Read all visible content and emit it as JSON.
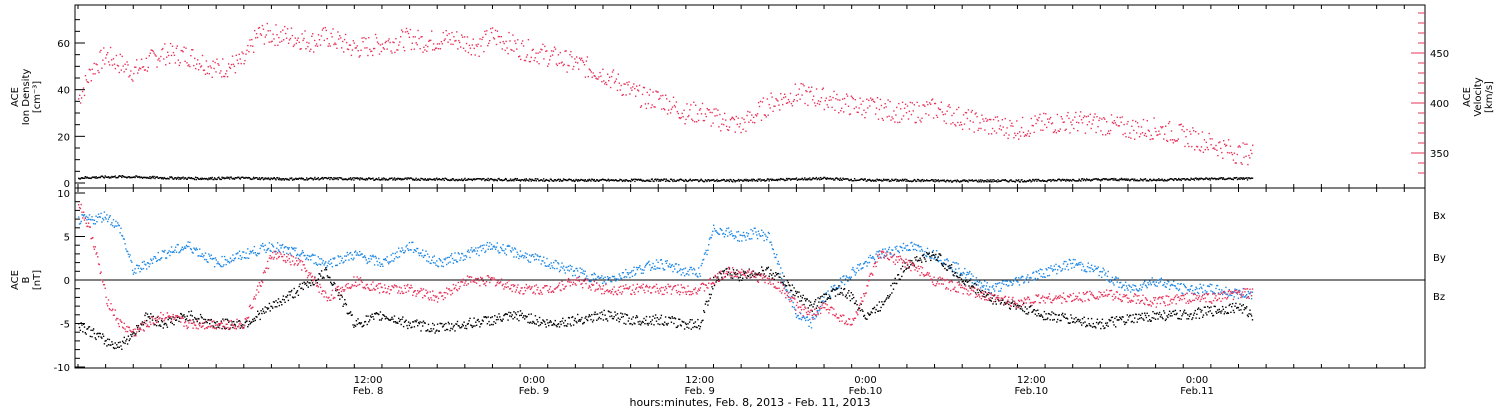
{
  "colors": {
    "density": "#000000",
    "velocity": "#e8325a",
    "bx": "#000000",
    "by": "#1e88e5",
    "bz": "#e8325a",
    "axis": "#000000"
  },
  "chart_data": [
    {
      "type": "scatter",
      "panel": "top",
      "ylabel_left": [
        "ACE",
        "Ion Density",
        "[cm⁻³]"
      ],
      "ylabel_right": [
        "ACE",
        "Velocity",
        "[km/s]"
      ],
      "ylim_left": [
        0,
        75
      ],
      "yticks_left": [
        "0",
        "20",
        "40",
        "60"
      ],
      "ylim_right": [
        320,
        495
      ],
      "yticks_right": [
        "350",
        "400",
        "450"
      ],
      "x_unit": "hours since 2013-02-07 15:00",
      "series": [
        {
          "name": "density",
          "x": [
            0,
            3,
            6,
            9,
            12,
            15,
            18,
            21,
            24,
            27,
            30,
            33,
            36,
            39,
            42,
            45,
            48,
            51,
            54,
            57,
            60,
            63,
            66,
            69,
            72,
            75,
            78,
            81,
            84,
            85
          ],
          "y": [
            2.5,
            3.0,
            2.5,
            2.2,
            2.4,
            2.0,
            2.2,
            2.0,
            2.0,
            1.8,
            1.8,
            1.6,
            1.5,
            1.4,
            1.5,
            1.4,
            1.3,
            1.8,
            2.2,
            1.5,
            1.4,
            1.2,
            1.2,
            1.3,
            1.6,
            1.8,
            1.6,
            2.0,
            2.2,
            2.0
          ]
        },
        {
          "name": "velocity",
          "x": [
            0,
            1,
            2,
            3,
            4,
            6,
            8,
            10,
            11,
            12,
            13,
            15,
            17,
            18,
            20,
            22,
            24,
            25,
            27,
            29,
            30,
            32,
            34,
            36,
            38,
            40,
            41,
            42,
            43,
            44,
            45,
            46,
            48,
            50,
            52,
            54,
            56,
            58,
            60,
            62,
            64,
            66,
            68,
            70,
            72,
            74,
            76,
            78,
            80,
            82,
            83,
            84,
            85
          ],
          "y": [
            405,
            435,
            448,
            440,
            432,
            450,
            448,
            435,
            438,
            442,
            470,
            468,
            462,
            467,
            455,
            460,
            465,
            462,
            465,
            458,
            468,
            455,
            448,
            440,
            430,
            412,
            405,
            405,
            398,
            390,
            392,
            385,
            378,
            400,
            410,
            405,
            398,
            395,
            390,
            395,
            385,
            378,
            375,
            380,
            382,
            380,
            375,
            375,
            368,
            360,
            355,
            350,
            350
          ]
        }
      ]
    },
    {
      "type": "scatter",
      "panel": "bottom",
      "ylabel": [
        "ACE",
        "B",
        "[nT]"
      ],
      "ylim": [
        -10.5,
        10.5
      ],
      "yticks": [
        "-10",
        "-5",
        "0",
        "5",
        "10"
      ],
      "legend": [
        "Bx",
        "By",
        "Bz"
      ],
      "x_unit": "hours since 2013-02-07 15:00",
      "series": [
        {
          "name": "Bx",
          "x": [
            0,
            1,
            2,
            3,
            4,
            5,
            6,
            8,
            10,
            12,
            14,
            16,
            18,
            20,
            22,
            24,
            26,
            28,
            30,
            32,
            34,
            36,
            38,
            40,
            42,
            44,
            45,
            46,
            47,
            48,
            49,
            50,
            51,
            52,
            53,
            54,
            55,
            56,
            57,
            58,
            60,
            62,
            64,
            66,
            68,
            70,
            72,
            74,
            76,
            78,
            80,
            82,
            84,
            85
          ],
          "y": [
            -5,
            -6,
            -7,
            -7.5,
            -6,
            -4,
            -5,
            -4,
            -5,
            -5,
            -3,
            -1,
            1,
            -5,
            -4,
            -5,
            -5.5,
            -5,
            -4.5,
            -4,
            -5,
            -4.5,
            -4,
            -4.5,
            -4.5,
            -5,
            -5,
            0,
            1,
            0.5,
            1,
            1,
            0,
            -1.5,
            -3,
            -2,
            -1,
            -2,
            -4,
            -3,
            2,
            3,
            0,
            -2,
            -3,
            -4,
            -4.5,
            -5,
            -4.5,
            -4,
            -4,
            -3.5,
            -3,
            -4
          ]
        },
        {
          "name": "By",
          "x": [
            0,
            1,
            2,
            3,
            4,
            6,
            8,
            10,
            12,
            14,
            16,
            18,
            20,
            22,
            24,
            26,
            28,
            30,
            32,
            34,
            36,
            38,
            40,
            42,
            44,
            45,
            46,
            47,
            48,
            49,
            50,
            51,
            52,
            53,
            54,
            56,
            58,
            60,
            62,
            64,
            66,
            68,
            70,
            72,
            74,
            76,
            78,
            80,
            82,
            84,
            85
          ],
          "y": [
            7,
            7,
            7.5,
            6,
            1,
            3,
            4,
            2,
            3,
            4,
            3,
            2,
            3,
            2,
            4,
            2,
            3,
            4,
            3,
            2,
            1,
            0,
            1,
            2,
            1,
            1,
            6,
            5.5,
            5,
            5.5,
            5,
            0,
            -4,
            -5,
            -2,
            1,
            3,
            4,
            3,
            1,
            -1,
            0,
            1,
            2,
            1,
            -1,
            0,
            -1,
            -1,
            -1.5,
            -1.5
          ]
        },
        {
          "name": "Bz",
          "x": [
            0,
            1,
            2,
            3,
            4,
            6,
            8,
            10,
            12,
            14,
            16,
            18,
            20,
            22,
            24,
            26,
            28,
            30,
            32,
            34,
            36,
            38,
            40,
            42,
            44,
            45,
            46,
            47,
            48,
            49,
            50,
            51,
            52,
            53,
            54,
            56,
            58,
            60,
            62,
            64,
            66,
            68,
            70,
            72,
            74,
            76,
            78,
            80,
            82,
            84,
            85
          ],
          "y": [
            9,
            5,
            -2,
            -5,
            -6,
            -4,
            -5,
            -5,
            -5,
            3,
            2,
            -2,
            0,
            -1,
            -1,
            -2,
            0,
            0,
            -1,
            -1,
            0,
            -1,
            -1,
            -1,
            -1,
            -1,
            0,
            1,
            1,
            0.5,
            0,
            -1,
            -3,
            -4,
            -3,
            -5,
            3,
            2,
            0,
            -1,
            -2,
            -2.5,
            -2,
            -2,
            -1.5,
            -2,
            -2.5,
            -2,
            -2,
            -1.5,
            -1.5
          ]
        }
      ]
    }
  ],
  "xaxis": {
    "ticks": [
      {
        "time": "12:00",
        "day": "Feb. 8"
      },
      {
        "time": "0:00",
        "day": "Feb. 9"
      },
      {
        "time": "12:00",
        "day": "Feb. 9"
      },
      {
        "time": "0:00",
        "day": "Feb.10"
      },
      {
        "time": "12:00",
        "day": "Feb.10"
      },
      {
        "time": "0:00",
        "day": "Feb.11"
      }
    ],
    "title": "hours:minutes, Feb.  8, 2013 - Feb. 11, 2013"
  }
}
